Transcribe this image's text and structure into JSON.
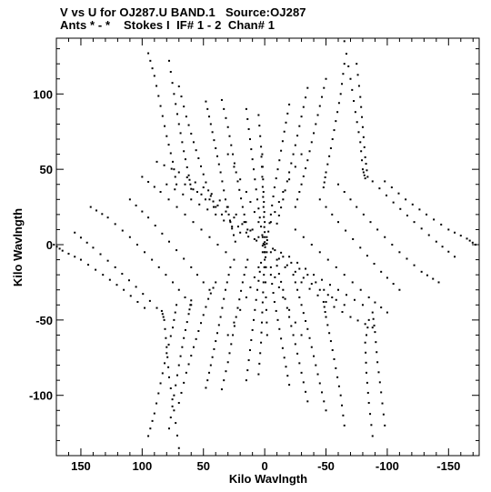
{
  "chart_data": {
    "type": "scatter",
    "title_line1": "V vs U for OJ287.U BAND.1   Source:OJ287",
    "title_line2": "Ants * - *    Stokes I  IF# 1 - 2  Chan# 1",
    "xlabel": "Kilo Wavlngth",
    "ylabel": "Kilo Wavlngth",
    "xlim": [
      170,
      -175
    ],
    "ylim": [
      -140,
      137
    ],
    "x_reversed": true,
    "grid": false,
    "xticks": [
      150,
      100,
      50,
      0,
      -50,
      -100,
      -150
    ],
    "xtick_labels": [
      "150",
      "100",
      "50",
      "0",
      "-50",
      "-100",
      "-150"
    ],
    "yticks": [
      100,
      50,
      0,
      -50,
      -100
    ],
    "ytick_labels": [
      "100",
      "50",
      "0",
      "-50",
      "-100"
    ],
    "marker_color": "#000000",
    "tracks": [
      {
        "name": "t1",
        "points": [
          [
            95,
            127
          ],
          [
            90,
            112
          ],
          [
            85,
            92
          ],
          [
            80,
            72
          ],
          [
            75,
            55
          ],
          [
            72,
            40
          ]
        ]
      },
      {
        "name": "t2",
        "points": [
          [
            78,
            122
          ],
          [
            74,
            100
          ],
          [
            70,
            80
          ],
          [
            66,
            62
          ],
          [
            62,
            46
          ],
          [
            60,
            37
          ]
        ]
      },
      {
        "name": "t3",
        "points": [
          [
            70,
            105
          ],
          [
            64,
            85
          ],
          [
            58,
            68
          ],
          [
            52,
            52
          ],
          [
            46,
            36
          ],
          [
            40,
            25
          ]
        ]
      },
      {
        "name": "t4",
        "points": [
          [
            48,
            95
          ],
          [
            44,
            80
          ],
          [
            40,
            64
          ],
          [
            36,
            48
          ],
          [
            32,
            30
          ],
          [
            28,
            15
          ],
          [
            24,
            2
          ]
        ]
      },
      {
        "name": "t5",
        "points": [
          [
            35,
            96
          ],
          [
            30,
            78
          ],
          [
            26,
            60
          ],
          [
            22,
            42
          ],
          [
            18,
            25
          ],
          [
            14,
            10
          ]
        ]
      },
      {
        "name": "t6",
        "points": [
          [
            15,
            90
          ],
          [
            12,
            70
          ],
          [
            9,
            50
          ],
          [
            6,
            30
          ],
          [
            3,
            12
          ],
          [
            0,
            -5
          ]
        ]
      },
      {
        "name": "t7",
        "points": [
          [
            5,
            86
          ],
          [
            3,
            65
          ],
          [
            2,
            45
          ],
          [
            1,
            25
          ],
          [
            0,
            5
          ],
          [
            -1,
            -15
          ]
        ]
      },
      {
        "name": "t8",
        "points": [
          [
            -20,
            93
          ],
          [
            -16,
            75
          ],
          [
            -12,
            56
          ],
          [
            -8,
            38
          ],
          [
            -5,
            20
          ],
          [
            -2,
            3
          ]
        ]
      },
      {
        "name": "t9",
        "points": [
          [
            -35,
            104
          ],
          [
            -30,
            85
          ],
          [
            -25,
            66
          ],
          [
            -20,
            48
          ],
          [
            -15,
            30
          ],
          [
            -10,
            14
          ]
        ]
      },
      {
        "name": "t10",
        "points": [
          [
            -50,
            110
          ],
          [
            -45,
            92
          ],
          [
            -40,
            74
          ],
          [
            -35,
            56
          ],
          [
            -30,
            40
          ],
          [
            -25,
            25
          ]
        ]
      },
      {
        "name": "t11",
        "points": [
          [
            -65,
            120
          ],
          [
            -62,
            100
          ],
          [
            -58,
            82
          ],
          [
            -54,
            64
          ],
          [
            -50,
            48
          ],
          [
            -48,
            38
          ]
        ]
      },
      {
        "name": "t12",
        "points": [
          [
            -65,
            135
          ],
          [
            -70,
            110
          ],
          [
            -74,
            88
          ],
          [
            -78,
            68
          ],
          [
            -80,
            50
          ],
          [
            -82,
            44
          ]
        ]
      },
      {
        "name": "t13",
        "points": [
          [
            -75,
            120
          ],
          [
            -78,
            98
          ],
          [
            -80,
            78
          ],
          [
            -82,
            58
          ],
          [
            -84,
            45
          ]
        ]
      },
      {
        "name": "t14",
        "points": [
          [
            -98,
            42
          ],
          [
            -115,
            30
          ],
          [
            -132,
            20
          ],
          [
            -150,
            10
          ],
          [
            -165,
            4
          ],
          [
            -172,
            0
          ]
        ]
      },
      {
        "name": "t15",
        "points": [
          [
            -88,
            42
          ],
          [
            -105,
            28
          ],
          [
            -122,
            15
          ],
          [
            -140,
            2
          ],
          [
            -155,
            -8
          ]
        ]
      },
      {
        "name": "t16",
        "points": [
          [
            -60,
            40
          ],
          [
            -75,
            25
          ],
          [
            -92,
            10
          ],
          [
            -110,
            -5
          ],
          [
            -128,
            -18
          ],
          [
            -142,
            -25
          ]
        ]
      },
      {
        "name": "t17",
        "points": [
          [
            -45,
            30
          ],
          [
            -60,
            15
          ],
          [
            -78,
            -2
          ],
          [
            -95,
            -18
          ],
          [
            -110,
            -30
          ]
        ]
      },
      {
        "name": "t18",
        "points": [
          [
            -25,
            10
          ],
          [
            -45,
            -5
          ],
          [
            -65,
            -20
          ],
          [
            -85,
            -35
          ],
          [
            -100,
            -45
          ]
        ]
      },
      {
        "name": "t19",
        "points": [
          [
            -10,
            -10
          ],
          [
            -30,
            -25
          ],
          [
            -50,
            -38
          ],
          [
            -70,
            -48
          ],
          [
            -88,
            -55
          ]
        ]
      },
      {
        "name": "t20",
        "points": [
          [
            95,
            -127
          ],
          [
            90,
            -112
          ],
          [
            85,
            -92
          ],
          [
            80,
            -72
          ],
          [
            75,
            -55
          ],
          [
            72,
            -40
          ]
        ]
      },
      {
        "name": "t21",
        "points": [
          [
            78,
            -122
          ],
          [
            74,
            -100
          ],
          [
            70,
            -80
          ],
          [
            66,
            -62
          ],
          [
            62,
            -46
          ],
          [
            60,
            -37
          ]
        ]
      },
      {
        "name": "t22",
        "points": [
          [
            70,
            -105
          ],
          [
            64,
            -85
          ],
          [
            58,
            -68
          ],
          [
            52,
            -52
          ],
          [
            46,
            -36
          ],
          [
            40,
            -25
          ]
        ]
      },
      {
        "name": "t23",
        "points": [
          [
            48,
            -95
          ],
          [
            44,
            -80
          ],
          [
            40,
            -64
          ],
          [
            36,
            -48
          ],
          [
            32,
            -30
          ],
          [
            28,
            -15
          ]
        ]
      },
      {
        "name": "t24",
        "points": [
          [
            35,
            -96
          ],
          [
            30,
            -78
          ],
          [
            26,
            -60
          ],
          [
            22,
            -42
          ],
          [
            18,
            -25
          ],
          [
            14,
            -10
          ]
        ]
      },
      {
        "name": "t25",
        "points": [
          [
            15,
            -90
          ],
          [
            12,
            -70
          ],
          [
            9,
            -50
          ],
          [
            6,
            -30
          ],
          [
            3,
            -12
          ]
        ]
      },
      {
        "name": "t26",
        "points": [
          [
            5,
            -86
          ],
          [
            3,
            -65
          ],
          [
            2,
            -45
          ],
          [
            1,
            -25
          ],
          [
            0,
            -10
          ]
        ]
      },
      {
        "name": "t27",
        "points": [
          [
            -20,
            -93
          ],
          [
            -16,
            -75
          ],
          [
            -12,
            -56
          ],
          [
            -8,
            -38
          ],
          [
            -5,
            -20
          ]
        ]
      },
      {
        "name": "t28",
        "points": [
          [
            -35,
            -104
          ],
          [
            -30,
            -85
          ],
          [
            -25,
            -66
          ],
          [
            -20,
            -48
          ],
          [
            -15,
            -30
          ],
          [
            -10,
            -14
          ]
        ]
      },
      {
        "name": "t29",
        "points": [
          [
            -50,
            -110
          ],
          [
            -45,
            -92
          ],
          [
            -40,
            -74
          ],
          [
            -35,
            -56
          ],
          [
            -30,
            -40
          ],
          [
            -25,
            -25
          ]
        ]
      },
      {
        "name": "t30",
        "points": [
          [
            -65,
            -120
          ],
          [
            -62,
            -100
          ],
          [
            -58,
            -82
          ],
          [
            -54,
            -64
          ],
          [
            -50,
            -48
          ],
          [
            -48,
            -38
          ]
        ]
      },
      {
        "name": "t31",
        "points": [
          [
            70,
            -135
          ],
          [
            74,
            -110
          ],
          [
            78,
            -88
          ],
          [
            80,
            -68
          ],
          [
            82,
            -50
          ],
          [
            84,
            -44
          ]
        ]
      },
      {
        "name": "t32",
        "points": [
          [
            -88,
            -127
          ],
          [
            -85,
            -105
          ],
          [
            -83,
            -85
          ],
          [
            -82,
            -65
          ],
          [
            -85,
            -50
          ]
        ]
      },
      {
        "name": "t33",
        "points": [
          [
            -98,
            -120
          ],
          [
            -95,
            -98
          ],
          [
            -92,
            -78
          ],
          [
            -90,
            -58
          ],
          [
            -88,
            -45
          ]
        ]
      },
      {
        "name": "t34",
        "points": [
          [
            98,
            -42
          ],
          [
            115,
            -30
          ],
          [
            132,
            -20
          ],
          [
            150,
            -10
          ],
          [
            165,
            -4
          ],
          [
            172,
            0
          ]
        ]
      },
      {
        "name": "t35",
        "points": [
          [
            88,
            -42
          ],
          [
            105,
            -28
          ],
          [
            122,
            -15
          ],
          [
            140,
            -2
          ],
          [
            155,
            8
          ]
        ]
      },
      {
        "name": "t36",
        "points": [
          [
            60,
            -40
          ],
          [
            75,
            -25
          ],
          [
            92,
            -10
          ],
          [
            110,
            5
          ],
          [
            128,
            18
          ],
          [
            142,
            25
          ]
        ]
      },
      {
        "name": "t37",
        "points": [
          [
            45,
            -30
          ],
          [
            60,
            -15
          ],
          [
            78,
            2
          ],
          [
            95,
            18
          ],
          [
            110,
            30
          ]
        ]
      },
      {
        "name": "t38",
        "points": [
          [
            25,
            -10
          ],
          [
            45,
            5
          ],
          [
            65,
            20
          ],
          [
            85,
            35
          ],
          [
            100,
            45
          ]
        ]
      },
      {
        "name": "t39",
        "points": [
          [
            10,
            10
          ],
          [
            30,
            25
          ],
          [
            50,
            38
          ],
          [
            70,
            48
          ],
          [
            88,
            55
          ]
        ]
      },
      {
        "name": "t40",
        "points": [
          [
            80,
            40
          ],
          [
            60,
            30
          ],
          [
            40,
            20
          ],
          [
            20,
            8
          ],
          [
            0,
            0
          ],
          [
            -20,
            -8
          ],
          [
            -40,
            -20
          ],
          [
            -60,
            -30
          ],
          [
            -80,
            -40
          ]
        ]
      },
      {
        "name": "t41",
        "points": [
          [
            55,
            35
          ],
          [
            35,
            20
          ],
          [
            15,
            8
          ],
          [
            -5,
            -5
          ],
          [
            -25,
            -18
          ],
          [
            -45,
            -30
          ],
          [
            -65,
            -40
          ]
        ]
      },
      {
        "name": "t42",
        "points": [
          [
            -55,
            -35
          ],
          [
            -35,
            -20
          ],
          [
            -15,
            -8
          ],
          [
            5,
            5
          ],
          [
            25,
            18
          ],
          [
            45,
            30
          ],
          [
            65,
            40
          ]
        ]
      },
      {
        "name": "t43",
        "points": [
          [
            30,
            60
          ],
          [
            15,
            35
          ],
          [
            5,
            15
          ],
          [
            -5,
            -15
          ],
          [
            -15,
            -35
          ],
          [
            -30,
            -60
          ]
        ]
      },
      {
        "name": "t44",
        "points": [
          [
            -30,
            60
          ],
          [
            -15,
            35
          ],
          [
            -5,
            15
          ],
          [
            5,
            -15
          ],
          [
            15,
            -35
          ],
          [
            30,
            -60
          ]
        ]
      },
      {
        "name": "t45",
        "points": [
          [
            2,
            60
          ],
          [
            1,
            35
          ],
          [
            0,
            15
          ],
          [
            0,
            -5
          ],
          [
            -1,
            -35
          ],
          [
            -2,
            -60
          ]
        ]
      }
    ]
  }
}
